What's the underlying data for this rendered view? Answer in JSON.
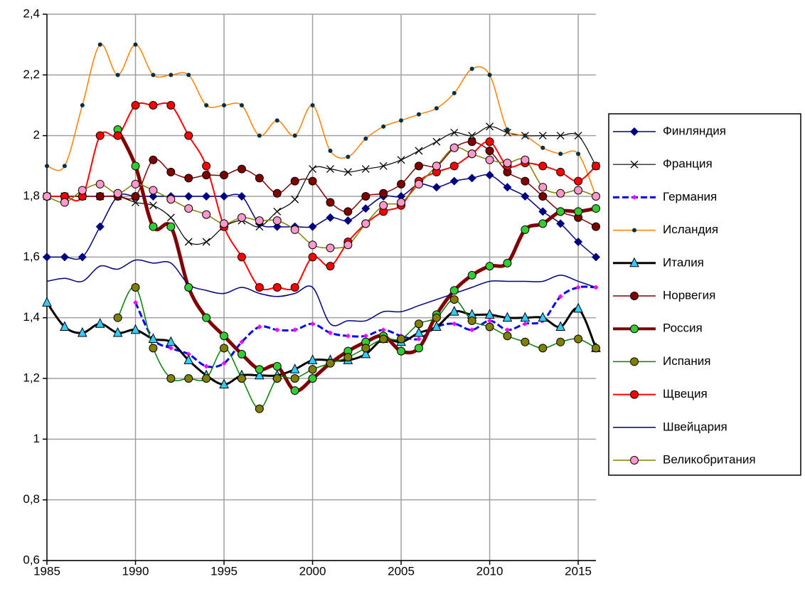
{
  "chart_data": {
    "type": "line",
    "smooth": true,
    "grid": true,
    "xlim": [
      1985,
      2016
    ],
    "xticks": [
      1985,
      1990,
      1995,
      2000,
      2005,
      2010,
      2015
    ],
    "ylim": [
      0.6,
      2.4
    ],
    "yticks": [
      {
        "value": 0.6,
        "label": "0,6"
      },
      {
        "value": 0.8,
        "label": "0,8"
      },
      1,
      {
        "value": 1.2,
        "label": "1,2"
      },
      {
        "value": 1.4,
        "label": "1,4"
      },
      {
        "value": 1.6,
        "label": "1,6"
      },
      {
        "value": 1.8,
        "label": "1,8"
      },
      2,
      {
        "value": 2.2,
        "label": "2,2"
      },
      {
        "value": 2.4,
        "label": "2,4"
      }
    ],
    "legend": "right",
    "x": [
      1985,
      1986,
      1987,
      1988,
      1989,
      1990,
      1991,
      1992,
      1993,
      1994,
      1995,
      1996,
      1997,
      1998,
      1999,
      2000,
      2001,
      2002,
      2003,
      2004,
      2005,
      2006,
      2007,
      2008,
      2009,
      2010,
      2011,
      2012,
      2013,
      2014,
      2015,
      2016
    ],
    "series": [
      {
        "name": "Финляндия",
        "color": "#000080",
        "width": 1.5,
        "marker": "diamond",
        "marker_color": "#000080",
        "values": [
          1.6,
          1.6,
          1.6,
          1.7,
          1.8,
          1.8,
          1.8,
          1.8,
          1.8,
          1.8,
          1.8,
          1.8,
          1.71,
          1.7,
          1.7,
          1.7,
          1.73,
          1.72,
          1.76,
          1.8,
          1.8,
          1.84,
          1.83,
          1.85,
          1.86,
          1.87,
          1.83,
          1.8,
          1.75,
          1.71,
          1.65,
          1.6
        ]
      },
      {
        "name": "Франция",
        "color": "#000000",
        "width": 1.2,
        "marker": "x",
        "marker_color": "#000000",
        "values": [
          1.8,
          1.8,
          1.8,
          1.8,
          1.8,
          1.78,
          1.77,
          1.73,
          1.65,
          1.65,
          1.7,
          1.72,
          1.7,
          1.75,
          1.79,
          1.89,
          1.89,
          1.88,
          1.89,
          1.9,
          1.92,
          1.95,
          1.98,
          2.01,
          2.0,
          2.03,
          2.01,
          2.0,
          2.0,
          2.0,
          2.0,
          1.9
        ]
      },
      {
        "name": "Германия",
        "color": "#0000ff",
        "width": 3,
        "dashed": true,
        "marker": "diamond-small",
        "marker_color": "#ff00ff",
        "values": [
          null,
          null,
          null,
          null,
          null,
          1.45,
          1.33,
          1.3,
          1.28,
          1.24,
          1.25,
          1.32,
          1.37,
          1.36,
          1.36,
          1.38,
          1.35,
          1.34,
          1.34,
          1.36,
          1.34,
          1.33,
          1.37,
          1.38,
          1.36,
          1.39,
          1.36,
          1.38,
          1.39,
          1.47,
          1.5,
          1.5
        ]
      },
      {
        "name": "Исландия",
        "color": "#ff8000",
        "width": 1.5,
        "marker": "dot",
        "marker_color": "#003040",
        "values": [
          1.9,
          1.9,
          2.1,
          2.3,
          2.2,
          2.3,
          2.2,
          2.2,
          2.2,
          2.1,
          2.1,
          2.1,
          2.0,
          2.05,
          2.0,
          2.1,
          1.95,
          1.93,
          1.99,
          2.03,
          2.05,
          2.07,
          2.09,
          2.14,
          2.22,
          2.2,
          2.02,
          2.0,
          1.96,
          1.94,
          1.94,
          1.8
        ]
      },
      {
        "name": "Италия",
        "color": "#000000",
        "width": 3,
        "marker": "triangle",
        "marker_color": "#33ccff",
        "values": [
          1.45,
          1.37,
          1.35,
          1.38,
          1.35,
          1.36,
          1.33,
          1.32,
          1.26,
          1.21,
          1.18,
          1.21,
          1.21,
          1.21,
          1.23,
          1.26,
          1.26,
          1.26,
          1.28,
          1.33,
          1.32,
          1.35,
          1.37,
          1.42,
          1.41,
          1.41,
          1.4,
          1.4,
          1.4,
          1.37,
          1.43,
          1.3
        ]
      },
      {
        "name": "Норвегия",
        "color": "#800000",
        "width": 1.5,
        "marker": "circle",
        "marker_color": "#800000",
        "values": [
          1.8,
          1.8,
          1.8,
          1.8,
          1.8,
          1.8,
          1.92,
          1.88,
          1.86,
          1.87,
          1.87,
          1.89,
          1.86,
          1.81,
          1.85,
          1.85,
          1.78,
          1.75,
          1.8,
          1.81,
          1.84,
          1.9,
          1.9,
          1.96,
          1.98,
          1.95,
          1.88,
          1.85,
          1.8,
          1.75,
          1.73,
          1.7
        ]
      },
      {
        "name": "Россия",
        "color": "#800000",
        "width": 5,
        "marker": "circle",
        "marker_color": "#33cc33",
        "values": [
          null,
          null,
          null,
          null,
          2.02,
          1.9,
          1.7,
          1.7,
          1.5,
          1.4,
          1.34,
          1.28,
          1.23,
          1.24,
          1.16,
          1.2,
          1.25,
          1.29,
          1.32,
          1.34,
          1.29,
          1.3,
          1.41,
          1.49,
          1.54,
          1.57,
          1.58,
          1.69,
          1.71,
          1.75,
          1.75,
          1.76
        ]
      },
      {
        "name": "Испания",
        "color": "#008000",
        "width": 1.5,
        "marker": "circle",
        "marker_color": "#808000",
        "values": [
          null,
          null,
          null,
          null,
          1.4,
          1.5,
          1.3,
          1.2,
          1.2,
          1.2,
          1.3,
          1.2,
          1.1,
          1.2,
          1.2,
          1.23,
          1.25,
          1.27,
          1.3,
          1.33,
          1.33,
          1.38,
          1.4,
          1.46,
          1.39,
          1.37,
          1.34,
          1.32,
          1.3,
          1.32,
          1.33,
          1.3
        ]
      },
      {
        "name": "Щвеция",
        "color": "#ff0000",
        "width": 2,
        "marker": "circle",
        "marker_color": "#ff0000",
        "values": [
          1.8,
          1.8,
          1.8,
          2.0,
          2.0,
          2.1,
          2.1,
          2.1,
          2.0,
          1.9,
          1.7,
          1.6,
          1.5,
          1.5,
          1.5,
          1.6,
          1.57,
          1.65,
          1.71,
          1.75,
          1.77,
          1.85,
          1.88,
          1.9,
          1.94,
          1.98,
          1.9,
          1.91,
          1.9,
          1.88,
          1.85,
          1.9
        ]
      },
      {
        "name": "Швейцария",
        "color": "#000080",
        "width": 1.5,
        "marker": "none",
        "marker_color": "#000080",
        "values": [
          1.52,
          1.53,
          1.52,
          1.57,
          1.56,
          1.59,
          1.58,
          1.58,
          1.51,
          1.49,
          1.48,
          1.5,
          1.48,
          1.47,
          1.48,
          1.5,
          1.38,
          1.39,
          1.39,
          1.42,
          1.42,
          1.44,
          1.46,
          1.48,
          1.5,
          1.52,
          1.52,
          1.52,
          1.52,
          1.54,
          1.52,
          1.5
        ]
      },
      {
        "name": "Великобритания",
        "color": "#808000",
        "width": 1.5,
        "marker": "circle",
        "marker_color": "#ff99cc",
        "values": [
          1.8,
          1.78,
          1.82,
          1.84,
          1.81,
          1.84,
          1.82,
          1.79,
          1.76,
          1.74,
          1.71,
          1.73,
          1.72,
          1.72,
          1.69,
          1.64,
          1.63,
          1.64,
          1.71,
          1.77,
          1.78,
          1.84,
          1.9,
          1.96,
          1.94,
          1.92,
          1.91,
          1.92,
          1.83,
          1.81,
          1.82,
          1.8
        ]
      }
    ]
  }
}
